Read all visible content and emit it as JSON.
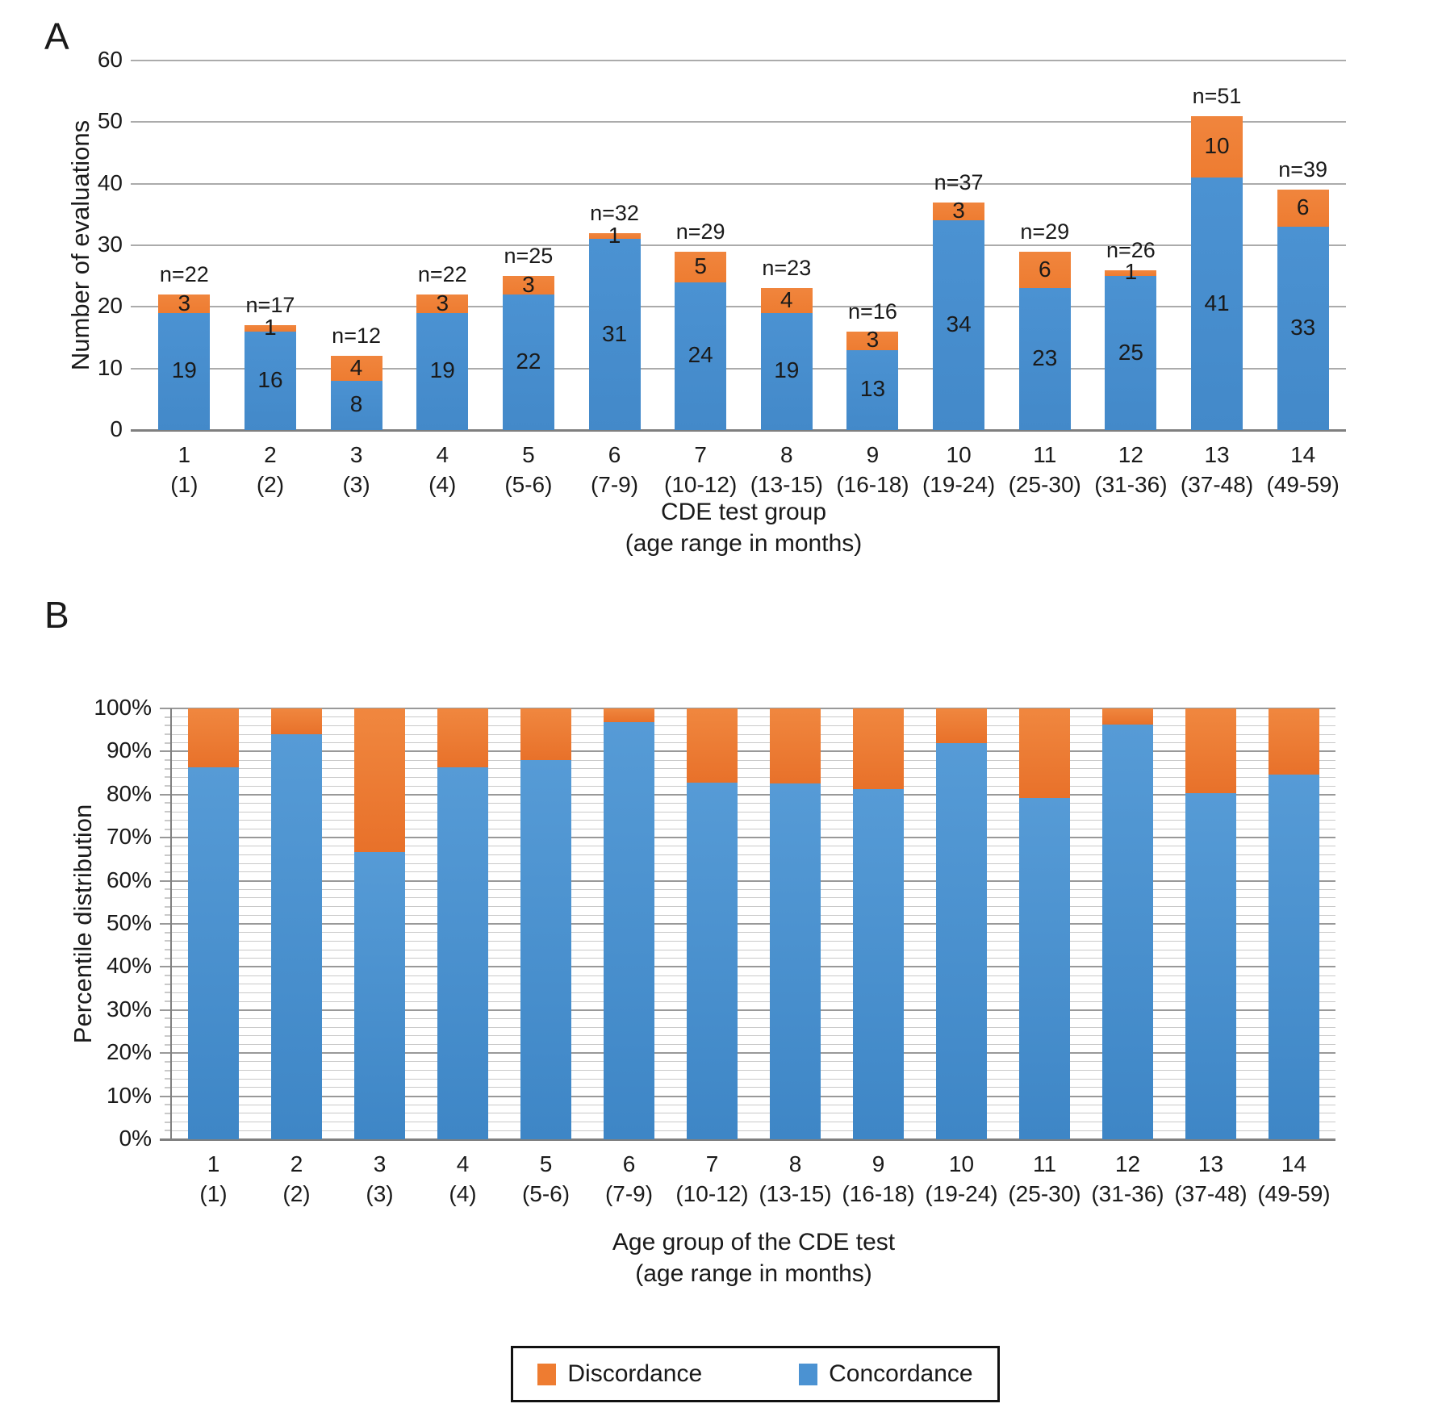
{
  "colors": {
    "concordance": "#4b92d2",
    "discordance": "#ee7c31",
    "grid_major_a": "#ababab",
    "grid_minor_b": "#c9c9c9",
    "grid_major_b": "#999999",
    "axis_line": "#7f7f7f"
  },
  "panelA": {
    "letter": "A",
    "ylabel": "Number of evaluations",
    "xlabel_line1": "CDE test group",
    "xlabel_line2": "(age range in months)",
    "yticks": [
      "0",
      "10",
      "20",
      "30",
      "40",
      "50",
      "60"
    ]
  },
  "panelB": {
    "letter": "B",
    "ylabel": "Percentile distribution",
    "xlabel_line1": "Age group of the CDE test",
    "xlabel_line2": "(age range in months)",
    "yticks": [
      "0%",
      "10%",
      "20%",
      "30%",
      "40%",
      "50%",
      "60%",
      "70%",
      "80%",
      "90%",
      "100%"
    ]
  },
  "legend": {
    "items": [
      {
        "label": "Discordance",
        "color": "#ee7c31"
      },
      {
        "label": "Concordance",
        "color": "#4b92d2"
      }
    ]
  },
  "chart_data": [
    {
      "type": "bar",
      "stacked": true,
      "panel": "A",
      "title": "",
      "categories": [
        "1",
        "2",
        "3",
        "4",
        "5",
        "6",
        "7",
        "8",
        "9",
        "10",
        "11",
        "12",
        "13",
        "14"
      ],
      "age_ranges": [
        "(1)",
        "(2)",
        "(3)",
        "(4)",
        "(5-6)",
        "(7-9)",
        "(10-12)",
        "(13-15)",
        "(16-18)",
        "(19-24)",
        "(25-30)",
        "(31-36)",
        "(37-48)",
        "(49-59)"
      ],
      "series": [
        {
          "name": "Concordance",
          "color": "#4b92d2",
          "values": [
            19,
            16,
            8,
            19,
            22,
            31,
            24,
            19,
            13,
            34,
            23,
            25,
            41,
            33
          ]
        },
        {
          "name": "Discordance",
          "color": "#ee7c31",
          "values": [
            3,
            1,
            4,
            3,
            3,
            1,
            5,
            4,
            3,
            3,
            6,
            1,
            10,
            6
          ]
        }
      ],
      "totals": [
        22,
        17,
        12,
        22,
        25,
        32,
        29,
        23,
        16,
        37,
        29,
        26,
        51,
        39
      ],
      "totals_labels": [
        "n=22",
        "n=17",
        "n=12",
        "n=22",
        "n=25",
        "n=32",
        "n=29",
        "n=23",
        "n=16",
        "n=37",
        "n=29",
        "n=26",
        "n=51",
        "n=39"
      ],
      "xlabel": "CDE test group (age range in months)",
      "ylabel": "Number of evaluations",
      "ylim": [
        0,
        60
      ],
      "ytick_step": 10,
      "grid": "horizontal-major",
      "legend_position": "bottom"
    },
    {
      "type": "bar",
      "stacked": true,
      "percent": true,
      "panel": "B",
      "title": "",
      "categories": [
        "1",
        "2",
        "3",
        "4",
        "5",
        "6",
        "7",
        "8",
        "9",
        "10",
        "11",
        "12",
        "13",
        "14"
      ],
      "age_ranges": [
        "(1)",
        "(2)",
        "(3)",
        "(4)",
        "(5-6)",
        "(7-9)",
        "(10-12)",
        "(13-15)",
        "(16-18)",
        "(19-24)",
        "(25-30)",
        "(31-36)",
        "(37-48)",
        "(49-59)"
      ],
      "series": [
        {
          "name": "Concordance",
          "color": "#4b92d2",
          "values": [
            86.4,
            94.1,
            66.7,
            86.4,
            88.0,
            96.9,
            82.8,
            82.6,
            81.3,
            91.9,
            79.3,
            96.2,
            80.4,
            84.6
          ]
        },
        {
          "name": "Discordance",
          "color": "#ee7c31",
          "values": [
            13.6,
            5.9,
            33.3,
            13.6,
            12.0,
            3.1,
            17.2,
            17.4,
            18.7,
            8.1,
            20.7,
            3.8,
            19.6,
            15.4
          ]
        }
      ],
      "xlabel": "Age group of the CDE test (age range in months)",
      "ylabel": "Percentile distribution",
      "ylim": [
        0,
        100
      ],
      "ytick_step": 10,
      "minor_grid_step": 2,
      "grid": "horizontal-minor-major",
      "legend_position": "bottom"
    }
  ]
}
